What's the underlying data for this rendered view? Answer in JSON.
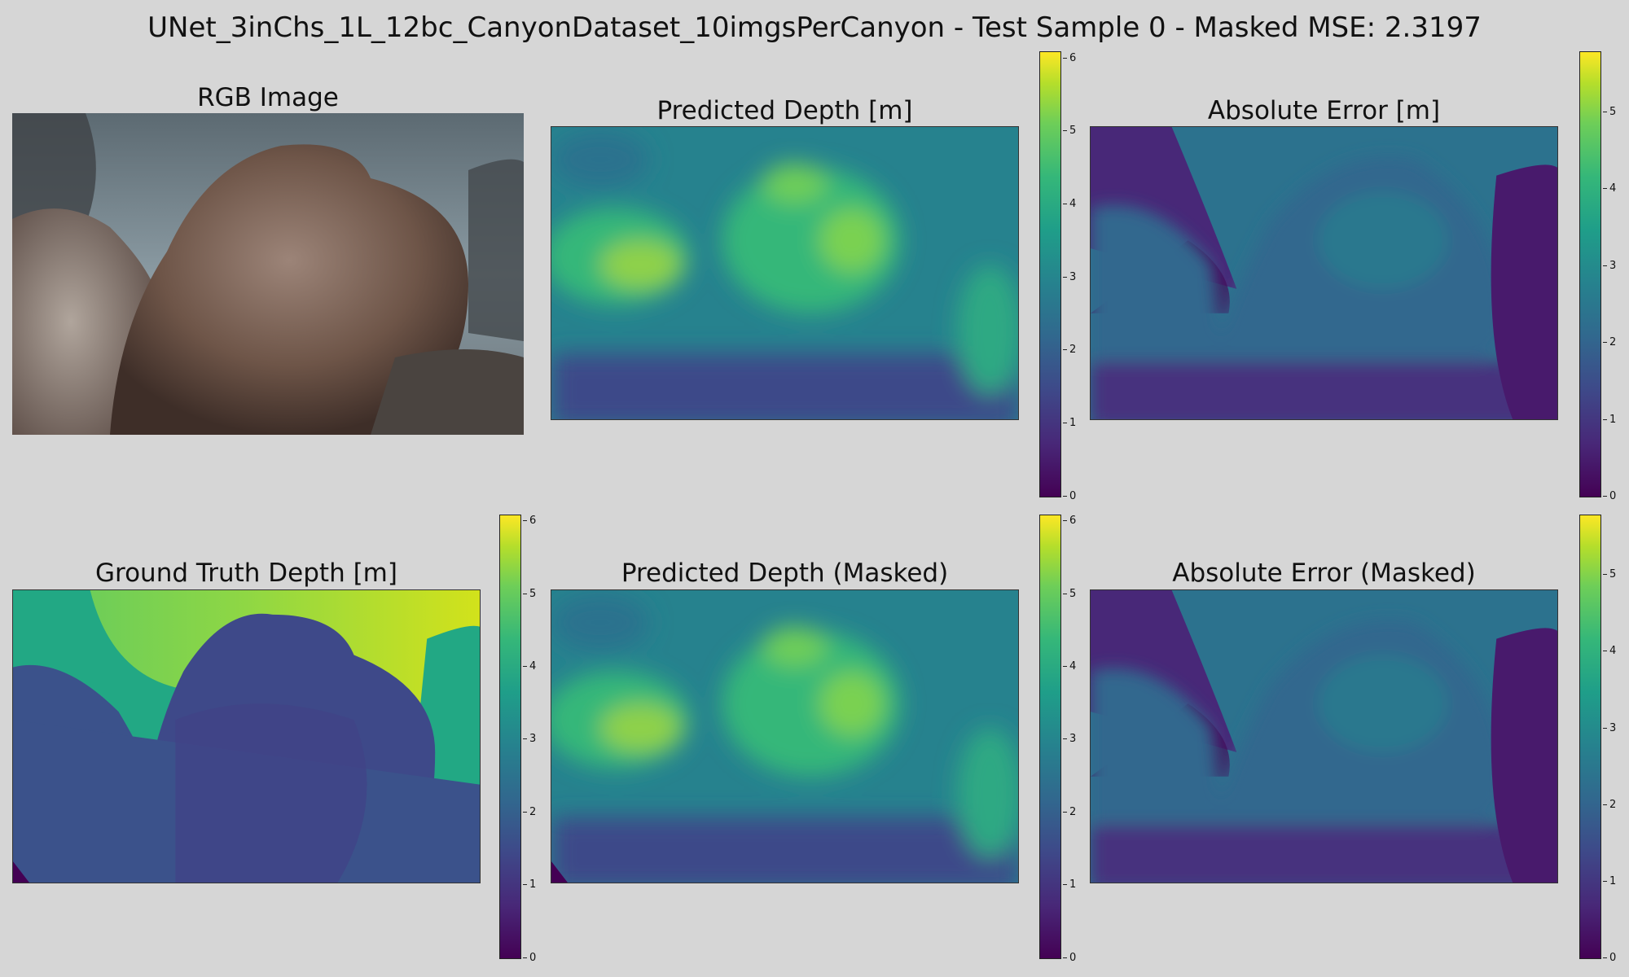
{
  "figure": {
    "suptitle": "UNet_3inChs_1L_12bc_CanyonDataset_10imgsPerCanyon - Test Sample 0 - Masked MSE: 2.3197"
  },
  "panels": {
    "rgb": {
      "title": "RGB Image"
    },
    "pred": {
      "title": "Predicted Depth [m]"
    },
    "err": {
      "title": "Absolute Error [m]"
    },
    "gt": {
      "title": "Ground Truth Depth [m]"
    },
    "pred_masked": {
      "title": "Predicted Depth (Masked)"
    },
    "err_masked": {
      "title": "Absolute Error (Masked)"
    }
  },
  "chart_data": [
    {
      "type": "heatmap",
      "title": "RGB Image",
      "image": "rgb"
    },
    {
      "type": "heatmap",
      "title": "Predicted Depth [m]",
      "colormap": "viridis",
      "colorbar": {
        "range": [
          0,
          6.1
        ],
        "ticks": [
          "0",
          "1",
          "2",
          "3",
          "4",
          "5",
          "6"
        ]
      }
    },
    {
      "type": "heatmap",
      "title": "Absolute Error [m]",
      "colormap": "viridis",
      "colorbar": {
        "range": [
          0,
          5.8
        ],
        "ticks": [
          "0",
          "1",
          "2",
          "3",
          "4",
          "5"
        ]
      }
    },
    {
      "type": "heatmap",
      "title": "Ground Truth Depth [m]",
      "colormap": "viridis",
      "colorbar": {
        "range": [
          0,
          6.1
        ],
        "ticks": [
          "0",
          "1",
          "2",
          "3",
          "4",
          "5",
          "6"
        ]
      }
    },
    {
      "type": "heatmap",
      "title": "Predicted Depth (Masked)",
      "colormap": "viridis",
      "colorbar": {
        "range": [
          0,
          6.1
        ],
        "ticks": [
          "0",
          "1",
          "2",
          "3",
          "4",
          "5",
          "6"
        ]
      }
    },
    {
      "type": "heatmap",
      "title": "Absolute Error (Masked)",
      "colormap": "viridis",
      "colorbar": {
        "range": [
          0,
          5.8
        ],
        "ticks": [
          "0",
          "1",
          "2",
          "3",
          "4",
          "5"
        ]
      }
    }
  ],
  "colors": {
    "background": "#d6d6d6",
    "viridis_low": "#440154",
    "viridis_high": "#fde725"
  }
}
